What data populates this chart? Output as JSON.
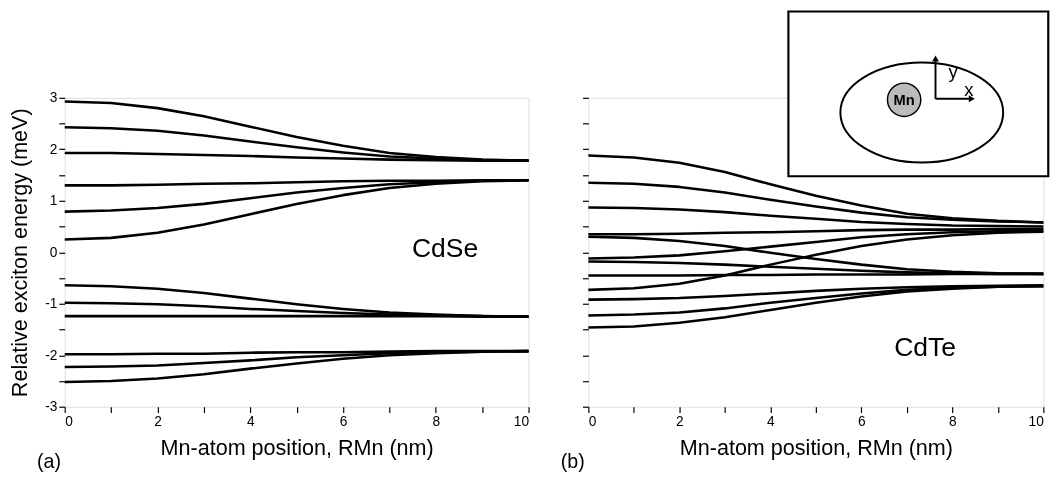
{
  "chart_data": [
    {
      "type": "line",
      "xlabel": "Mn-atom position, RMn (nm)",
      "ylabel": "Relative exciton energy (meV)",
      "annotations": [
        "CdSe",
        "(a)"
      ],
      "x": [
        0,
        1,
        2,
        3,
        4,
        5,
        6,
        7,
        8,
        9,
        10
      ],
      "xlim": [
        0,
        10
      ],
      "ylim": [
        -3,
        3
      ],
      "xticks": [
        0,
        {
          "value": 1,
          "label": null
        },
        2,
        {
          "value": 3,
          "label": null
        },
        4,
        {
          "value": 5,
          "label": null
        },
        6,
        {
          "value": 7,
          "label": null
        },
        8,
        {
          "value": 9,
          "label": null
        },
        10
      ],
      "yticks": [
        -3,
        {
          "value": -2.5,
          "label": null
        },
        -2,
        {
          "value": -1.5,
          "label": null
        },
        -1,
        {
          "value": -0.5,
          "label": null
        },
        0,
        {
          "value": 0.5,
          "label": null
        },
        1,
        {
          "value": 1.5,
          "label": null
        },
        2,
        {
          "value": 2.5,
          "label": null
        },
        3
      ],
      "series": [
        {
          "color": "#000000",
          "values": [
            2.93,
            2.9,
            2.8,
            2.64,
            2.44,
            2.24,
            2.07,
            1.93,
            1.85,
            1.8,
            1.78
          ]
        },
        {
          "color": "#000000",
          "values": [
            2.43,
            2.41,
            2.36,
            2.27,
            2.15,
            2.04,
            1.94,
            1.86,
            1.82,
            1.79,
            1.78
          ]
        },
        {
          "color": "#000000",
          "values": [
            1.93,
            1.93,
            1.91,
            1.89,
            1.87,
            1.84,
            1.82,
            1.8,
            1.79,
            1.78,
            1.78
          ]
        },
        {
          "color": "#000000",
          "values": [
            1.3,
            1.3,
            1.31,
            1.33,
            1.34,
            1.36,
            1.38,
            1.39,
            1.39,
            1.4,
            1.4
          ]
        },
        {
          "color": "#000000",
          "values": [
            0.79,
            0.81,
            0.86,
            0.94,
            1.05,
            1.16,
            1.25,
            1.32,
            1.36,
            1.39,
            1.4
          ]
        },
        {
          "color": "#000000",
          "values": [
            0.25,
            0.28,
            0.38,
            0.54,
            0.74,
            0.94,
            1.11,
            1.25,
            1.33,
            1.38,
            1.4
          ]
        },
        {
          "color": "#000000",
          "values": [
            -0.64,
            -0.66,
            -0.71,
            -0.79,
            -0.9,
            -1.01,
            -1.1,
            -1.17,
            -1.21,
            -1.24,
            -1.25
          ]
        },
        {
          "color": "#000000",
          "values": [
            -0.98,
            -0.99,
            -1.01,
            -1.05,
            -1.1,
            -1.14,
            -1.18,
            -1.21,
            -1.23,
            -1.24,
            -1.25
          ]
        },
        {
          "color": "#000000",
          "values": [
            -1.24,
            -1.24,
            -1.24,
            -1.24,
            -1.24,
            -1.24,
            -1.24,
            -1.24,
            -1.24,
            -1.25,
            -1.25
          ]
        },
        {
          "color": "#000000",
          "values": [
            -1.98,
            -1.98,
            -1.97,
            -1.97,
            -1.95,
            -1.94,
            -1.94,
            -1.93,
            -1.92,
            -1.92,
            -1.92
          ]
        },
        {
          "color": "#000000",
          "values": [
            -2.23,
            -2.22,
            -2.2,
            -2.15,
            -2.1,
            -2.04,
            -2.0,
            -1.96,
            -1.94,
            -1.93,
            -1.92
          ]
        },
        {
          "color": "#000000",
          "values": [
            -2.52,
            -2.5,
            -2.45,
            -2.37,
            -2.26,
            -2.16,
            -2.07,
            -2.0,
            -1.96,
            -1.93,
            -1.92
          ]
        }
      ]
    },
    {
      "type": "line",
      "xlabel": "Mn-atom position, RMn (nm)",
      "annotations": [
        "CdTe",
        "(b)",
        "Mn",
        "y",
        "x"
      ],
      "tick_labels": "x",
      "x": [
        0,
        1,
        2,
        3,
        4,
        5,
        6,
        7,
        8,
        9,
        10
      ],
      "xlim": [
        0,
        10
      ],
      "ylim": [
        -3,
        3
      ],
      "xticks": [
        0,
        {
          "value": 1,
          "label": null
        },
        2,
        {
          "value": 3,
          "label": null
        },
        4,
        {
          "value": 5,
          "label": null
        },
        6,
        {
          "value": 7,
          "label": null
        },
        8,
        {
          "value": 9,
          "label": null
        },
        10
      ],
      "yticks": [
        -3,
        {
          "value": -2.5,
          "label": null
        },
        -2,
        {
          "value": -1.5,
          "label": null
        },
        -1,
        {
          "value": -0.5,
          "label": null
        },
        0,
        {
          "value": 0.5,
          "label": null
        },
        1,
        {
          "value": 1.5,
          "label": null
        },
        2,
        {
          "value": 2.5,
          "label": null
        },
        3
      ],
      "series": [
        {
          "color": "#000000",
          "values": [
            1.88,
            1.84,
            1.74,
            1.56,
            1.32,
            1.1,
            0.91,
            0.75,
            0.66,
            0.61,
            0.58
          ]
        },
        {
          "color": "#000000",
          "values": [
            1.35,
            1.33,
            1.27,
            1.16,
            1.02,
            0.89,
            0.77,
            0.68,
            0.63,
            0.6,
            0.58
          ]
        },
        {
          "color": "#000000",
          "values": [
            0.87,
            0.86,
            0.83,
            0.78,
            0.71,
            0.65,
            0.59,
            0.55,
            0.52,
            0.51,
            0.5
          ]
        },
        {
          "color": "#000000",
          "values": [
            0.35,
            0.35,
            0.36,
            0.38,
            0.39,
            0.41,
            0.43,
            0.44,
            0.44,
            0.45,
            0.45
          ]
        },
        {
          "color": "#000000",
          "values": [
            0.3,
            0.28,
            0.22,
            0.12,
            -0.01,
            -0.13,
            -0.24,
            -0.33,
            -0.38,
            -0.41,
            -0.42
          ]
        },
        {
          "color": "#000000",
          "values": [
            -0.12,
            -0.1,
            -0.06,
            0.02,
            0.11,
            0.2,
            0.29,
            0.35,
            0.39,
            0.41,
            0.42
          ]
        },
        {
          "color": "#000000",
          "values": [
            -0.18,
            -0.19,
            -0.21,
            -0.24,
            -0.28,
            -0.32,
            -0.36,
            -0.39,
            -0.41,
            -0.42,
            -0.42
          ]
        },
        {
          "color": "#000000",
          "values": [
            -0.45,
            -0.45,
            -0.45,
            -0.44,
            -0.44,
            -0.43,
            -0.43,
            -0.43,
            -0.42,
            -0.42,
            -0.42
          ]
        },
        {
          "color": "#000000",
          "values": [
            -0.73,
            -0.7,
            -0.61,
            -0.45,
            -0.24,
            -0.05,
            0.12,
            0.25,
            0.33,
            0.38,
            0.4
          ]
        },
        {
          "color": "#000000",
          "values": [
            -0.92,
            -0.91,
            -0.89,
            -0.85,
            -0.8,
            -0.75,
            -0.71,
            -0.68,
            -0.66,
            -0.65,
            -0.64
          ]
        },
        {
          "color": "#000000",
          "values": [
            -1.23,
            -1.21,
            -1.17,
            -1.09,
            -0.98,
            -0.89,
            -0.8,
            -0.73,
            -0.69,
            -0.67,
            -0.66
          ]
        },
        {
          "color": "#000000",
          "values": [
            -1.46,
            -1.44,
            -1.37,
            -1.26,
            -1.12,
            -0.98,
            -0.86,
            -0.76,
            -0.71,
            -0.67,
            -0.66
          ]
        }
      ]
    }
  ]
}
